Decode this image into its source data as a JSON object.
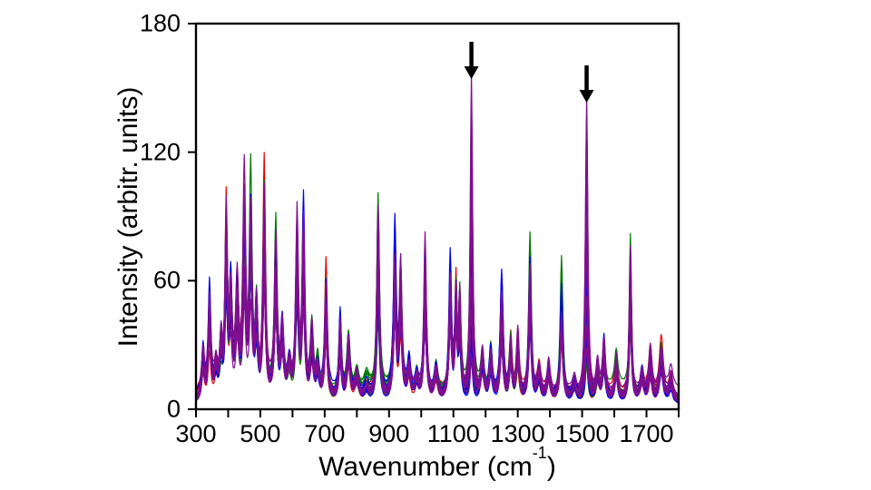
{
  "page": {
    "background": "#ffffff"
  },
  "chart_data": {
    "type": "line",
    "title": "",
    "ylabel": "Intensity (arbitr. units)",
    "xlabel_parts": {
      "main": "Wavenumber (cm",
      "sup": "-1",
      "end": ")"
    },
    "xlim": [
      300,
      1800
    ],
    "ylim": [
      0,
      180
    ],
    "x_tick_values": [
      300,
      500,
      700,
      900,
      1100,
      1300,
      1500,
      1700
    ],
    "x_tick_labels": [
      "300",
      "500",
      "700",
      "900",
      "1100",
      "1300",
      "1500",
      "1700"
    ],
    "x_minor_ticks": [
      400,
      600,
      800,
      1000,
      1200,
      1400,
      1600,
      1800
    ],
    "y_tick_values": [
      0,
      60,
      120,
      180
    ],
    "y_tick_labels": [
      "0",
      "60",
      "120",
      "180"
    ],
    "grid": false,
    "legend": false,
    "frame": true,
    "axis_color": "#000000",
    "annotations": [
      {
        "type": "arrow",
        "x": 1156,
        "tip_intensity": 152,
        "color": "#000000"
      },
      {
        "type": "arrow",
        "x": 1514,
        "tip_intensity": 141,
        "color": "#000000"
      }
    ],
    "series_groups": [
      {
        "name": "red",
        "color": "#e80000",
        "count": 11
      },
      {
        "name": "green",
        "color": "#007a00",
        "count": 11
      },
      {
        "name": "blue",
        "color": "#0000ee",
        "count": 11
      },
      {
        "name": "purple",
        "color": "#7f0f8f",
        "count": 11
      }
    ],
    "champion_peaks": {
      "red": [
        394,
        512,
        704,
        1108
      ],
      "green": [
        470,
        548,
        866,
        1338,
        1436,
        1650
      ],
      "blue": [
        342,
        634,
        748,
        918,
        1090,
        1250,
        1568
      ],
      "purple": [
        450,
        936,
        1012,
        1156,
        1514,
        1606
      ]
    },
    "peaks": [
      [
        322,
        28,
        5
      ],
      [
        342,
        54,
        5
      ],
      [
        362,
        20,
        6
      ],
      [
        378,
        30,
        5
      ],
      [
        394,
        93,
        4.5
      ],
      [
        408,
        58,
        5
      ],
      [
        428,
        58,
        6
      ],
      [
        450,
        106,
        5.5
      ],
      [
        470,
        104,
        5
      ],
      [
        488,
        50,
        5
      ],
      [
        512,
        111,
        5
      ],
      [
        548,
        82,
        5
      ],
      [
        568,
        38,
        6
      ],
      [
        590,
        20,
        7
      ],
      [
        614,
        92,
        5
      ],
      [
        634,
        94,
        5
      ],
      [
        660,
        36,
        6
      ],
      [
        678,
        18,
        6
      ],
      [
        704,
        66,
        5
      ],
      [
        748,
        42,
        5
      ],
      [
        774,
        34,
        6
      ],
      [
        800,
        15,
        7
      ],
      [
        830,
        8,
        8
      ],
      [
        866,
        96,
        5
      ],
      [
        918,
        81,
        5
      ],
      [
        936,
        64,
        5
      ],
      [
        962,
        20,
        6
      ],
      [
        986,
        14,
        6
      ],
      [
        1012,
        78,
        5
      ],
      [
        1046,
        18,
        7
      ],
      [
        1090,
        68,
        5
      ],
      [
        1108,
        56,
        4.5
      ],
      [
        1120,
        50,
        4.5
      ],
      [
        1156,
        152,
        4.5
      ],
      [
        1190,
        26,
        6
      ],
      [
        1216,
        28,
        6
      ],
      [
        1250,
        60,
        5.5
      ],
      [
        1278,
        34,
        5
      ],
      [
        1300,
        36,
        5
      ],
      [
        1338,
        78,
        5
      ],
      [
        1366,
        16,
        6
      ],
      [
        1396,
        20,
        6
      ],
      [
        1436,
        66,
        5
      ],
      [
        1476,
        10,
        7
      ],
      [
        1514,
        141,
        4.5
      ],
      [
        1548,
        18,
        6
      ],
      [
        1568,
        28,
        5.5
      ],
      [
        1606,
        22,
        6
      ],
      [
        1650,
        78,
        4.5
      ],
      [
        1686,
        16,
        6
      ],
      [
        1712,
        26,
        6
      ],
      [
        1746,
        30,
        7
      ],
      [
        1776,
        14,
        7
      ]
    ],
    "render": {
      "seed": 1337,
      "step": 2,
      "amp_range": [
        0.45,
        0.95
      ],
      "tall_peaks": [
        1156,
        1514
      ],
      "tall_amp_range": [
        0.12,
        0.95
      ],
      "global_range": [
        0.82,
        1.0
      ],
      "baseline_range": [
        1.5,
        3.5
      ],
      "bump_count": 4,
      "line_width": 1.2
    }
  }
}
